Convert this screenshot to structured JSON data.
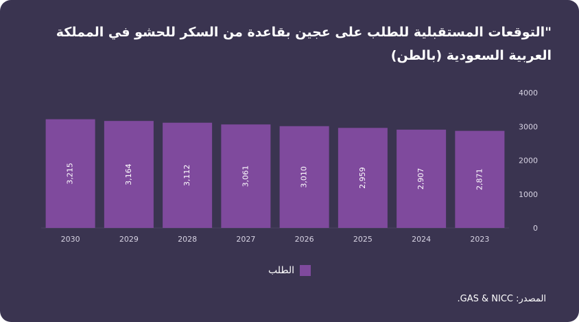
{
  "colors": {
    "background": "#3a3450",
    "bar": "#7f4a9d",
    "text": "#ffffff",
    "axis": "#d8d4e4"
  },
  "chart_data": {
    "type": "bar",
    "title": "\"التوقعات المستقبلية للطلب على عجين بقاعدة من السكر للحشو  في المملكة العربية السعودية (بالطن)",
    "categories": [
      "2030",
      "2029",
      "2028",
      "2027",
      "2026",
      "2025",
      "2024",
      "2023"
    ],
    "series": [
      {
        "name": "الطلب",
        "values": [
          3215,
          3164,
          3112,
          3061,
          3010,
          2959,
          2907,
          2871
        ]
      }
    ],
    "data_labels": [
      "3,215",
      "3,164",
      "3,112",
      "3,061",
      "3,010",
      "2,959",
      "2,907",
      "2,871"
    ],
    "y_ticks": [
      "0",
      "1000",
      "2000",
      "3000",
      "4000"
    ],
    "ylim": [
      0,
      4000
    ],
    "y_axis_position": "right",
    "grid": false,
    "legend_position": "bottom-center"
  },
  "source_text": "المصدر: GAS & NICC."
}
